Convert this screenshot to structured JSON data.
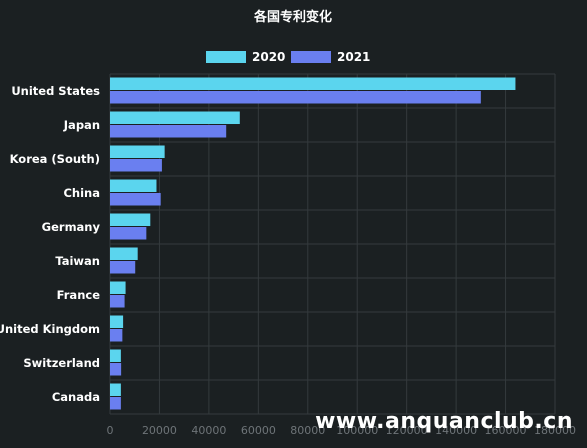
{
  "chart_data": {
    "type": "bar",
    "orientation": "horizontal",
    "title": "各国专利变化",
    "categories": [
      "United States",
      "Japan",
      "Korea (South)",
      "China",
      "Germany",
      "Taiwan",
      "France",
      "United Kingdom",
      "Switzerland",
      "Canada"
    ],
    "series": [
      {
        "name": "2020",
        "color": "#5bd5ee",
        "values": [
          164000,
          52500,
          22100,
          18800,
          16300,
          11200,
          6300,
          5300,
          4400,
          4400
        ]
      },
      {
        "name": "2021",
        "color": "#6a7ff0",
        "values": [
          150000,
          47000,
          21000,
          20500,
          14700,
          10200,
          5900,
          5000,
          4500,
          4400
        ]
      }
    ],
    "xlim": [
      0,
      180000
    ],
    "x_ticks": [
      "0",
      "20000",
      "40000",
      "60000",
      "80000",
      "100000",
      "120000",
      "140000",
      "160000",
      "180000"
    ],
    "legend_position": "top-center",
    "grid": true
  },
  "watermark": "www.anquanclub.cn"
}
